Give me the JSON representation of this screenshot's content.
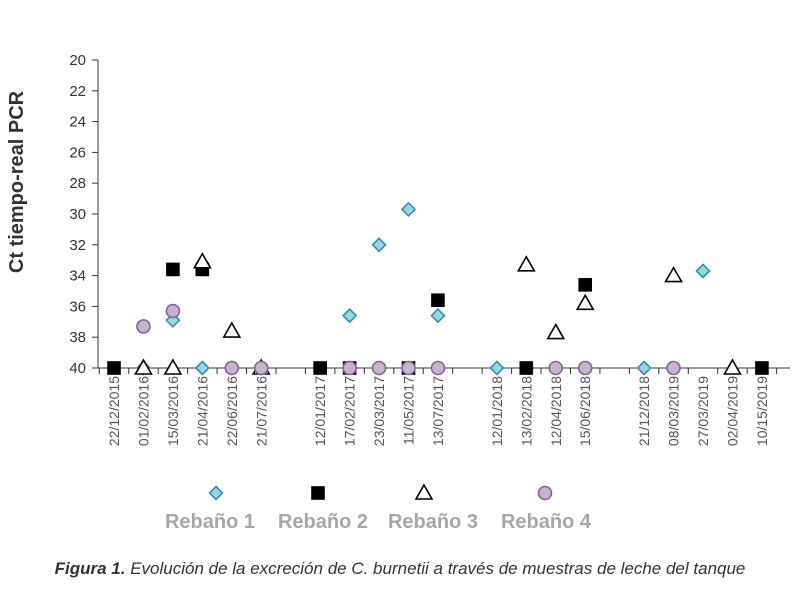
{
  "chart_data": {
    "type": "scatter",
    "ylabel": "Ct tiempo-real PCR",
    "ylim": [
      20,
      40
    ],
    "yinverted": true,
    "yticks": [
      20,
      22,
      24,
      26,
      28,
      30,
      32,
      34,
      36,
      38,
      40
    ],
    "categories": [
      "22/12/2015",
      "01/02/2016",
      "15/03/2016",
      "21/04/2016",
      "22/06/2016",
      "21/07/2016",
      "",
      "12/01/2017",
      "17/02/2017",
      "23/03/2017",
      "11/05/2017",
      "13/07/2017",
      "",
      "12/01/2018",
      "13/02/2018",
      "12/04/2018",
      "15/06/2018",
      "",
      "21/12/2018",
      "08/03/2019",
      "27/03/2019",
      "02/04/2019",
      "10/15/2019"
    ],
    "series": [
      {
        "name": "Rebaño 1",
        "marker": "diamond",
        "color": "#9dd3e3",
        "stroke": "#2f8fb0",
        "values": [
          null,
          40,
          36.9,
          40,
          40,
          40,
          null,
          null,
          36.6,
          32,
          29.7,
          36.6,
          null,
          40,
          null,
          null,
          null,
          null,
          40,
          null,
          33.7,
          null,
          null
        ]
      },
      {
        "name": "Rebaño 2",
        "marker": "square",
        "color": "#000000",
        "stroke": "#000000",
        "values": [
          40,
          null,
          33.6,
          33.6,
          null,
          null,
          null,
          40,
          40,
          null,
          40,
          35.6,
          null,
          null,
          40,
          null,
          34.6,
          null,
          null,
          null,
          null,
          null,
          40
        ]
      },
      {
        "name": "Rebaño 3",
        "marker": "triangle",
        "color": "#ffffff",
        "stroke": "#000000",
        "values": [
          null,
          40,
          40,
          33.1,
          37.6,
          40,
          null,
          null,
          null,
          null,
          null,
          null,
          null,
          null,
          33.3,
          37.7,
          35.8,
          null,
          null,
          34,
          null,
          40,
          null
        ]
      },
      {
        "name": "Rebaño 4",
        "marker": "circle",
        "color": "#c7b3cb",
        "stroke": "#8b5f96",
        "values": [
          null,
          37.3,
          36.3,
          null,
          40,
          40,
          null,
          null,
          40,
          40,
          40,
          40,
          null,
          null,
          null,
          40,
          40,
          null,
          null,
          40,
          null,
          null,
          null
        ]
      }
    ],
    "legend_position": "bottom",
    "grid": false
  },
  "caption": {
    "label": "Figura 1.",
    "text": " Evolución de la excreción de C. burnetii a través de muestras de leche del tanque"
  }
}
